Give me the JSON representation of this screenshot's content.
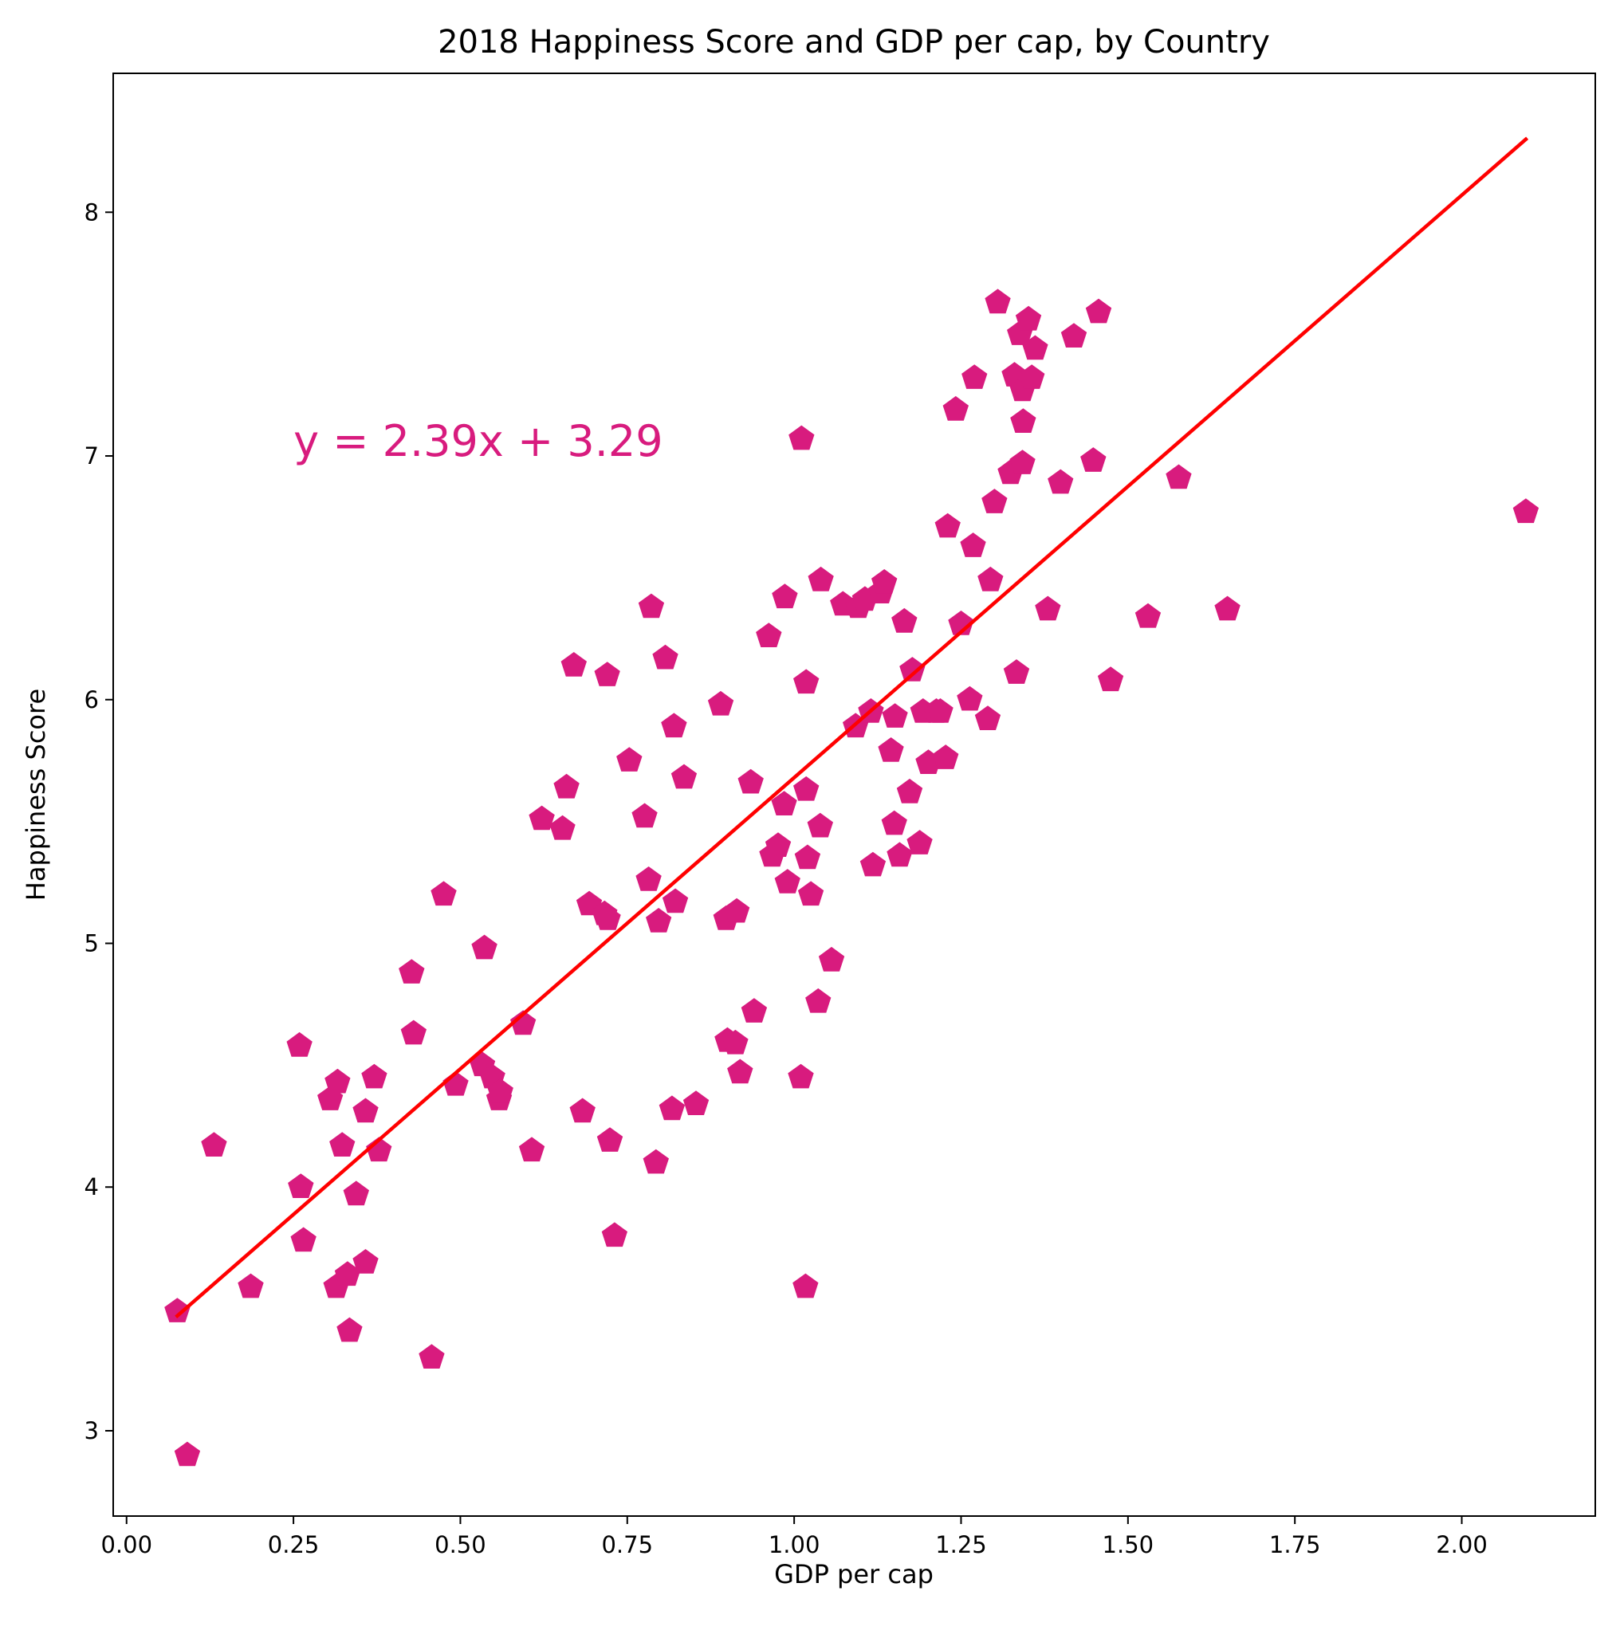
{
  "chart_data": {
    "type": "scatter",
    "title": "2018 Happiness Score and GDP per cap, by Country",
    "xlabel": "GDP per cap",
    "ylabel": "Happiness Score",
    "xlim": [
      -0.02,
      2.2
    ],
    "ylim": [
      2.65,
      8.57
    ],
    "xticks": [
      0.0,
      0.25,
      0.5,
      0.75,
      1.0,
      1.25,
      1.5,
      1.75,
      2.0
    ],
    "xtick_labels": [
      "0.00",
      "0.25",
      "0.50",
      "0.75",
      "1.00",
      "1.25",
      "1.50",
      "1.75",
      "2.00"
    ],
    "yticks": [
      3,
      4,
      5,
      6,
      7,
      8
    ],
    "ytick_labels": [
      "3",
      "4",
      "5",
      "6",
      "7",
      "8"
    ],
    "grid": false,
    "marker_color": "#D81B7E",
    "line_color": "#FF0000",
    "regression": {
      "slope": 2.39,
      "intercept": 3.29,
      "x_range": [
        0.076,
        2.096
      ],
      "label": "y = 2.39x + 3.29",
      "label_position": [
        0.25,
        7.0
      ]
    },
    "points": [
      [
        0.076,
        3.49
      ],
      [
        0.091,
        2.9
      ],
      [
        0.131,
        4.17
      ],
      [
        0.186,
        3.59
      ],
      [
        0.259,
        4.58
      ],
      [
        0.261,
        4.0
      ],
      [
        0.265,
        3.78
      ],
      [
        0.305,
        4.36
      ],
      [
        0.316,
        4.43
      ],
      [
        0.314,
        3.59
      ],
      [
        0.323,
        4.17
      ],
      [
        0.331,
        3.64
      ],
      [
        0.334,
        3.41
      ],
      [
        0.344,
        3.97
      ],
      [
        0.358,
        4.31
      ],
      [
        0.358,
        3.69
      ],
      [
        0.371,
        4.45
      ],
      [
        0.378,
        4.15
      ],
      [
        0.427,
        4.88
      ],
      [
        0.43,
        4.63
      ],
      [
        0.457,
        3.3
      ],
      [
        0.475,
        5.2
      ],
      [
        0.493,
        4.42
      ],
      [
        0.536,
        4.98
      ],
      [
        0.533,
        4.5
      ],
      [
        0.548,
        4.45
      ],
      [
        0.558,
        4.36
      ],
      [
        0.56,
        4.39
      ],
      [
        0.594,
        4.67
      ],
      [
        0.607,
        4.15
      ],
      [
        0.622,
        5.51
      ],
      [
        0.653,
        5.47
      ],
      [
        0.659,
        5.64
      ],
      [
        0.67,
        6.14
      ],
      [
        0.683,
        4.31
      ],
      [
        0.693,
        5.16
      ],
      [
        0.716,
        5.12
      ],
      [
        0.72,
        6.1
      ],
      [
        0.721,
        5.1
      ],
      [
        0.724,
        4.19
      ],
      [
        0.731,
        3.8
      ],
      [
        0.753,
        5.75
      ],
      [
        0.776,
        5.52
      ],
      [
        0.782,
        5.26
      ],
      [
        0.786,
        6.38
      ],
      [
        0.793,
        4.1
      ],
      [
        0.797,
        5.09
      ],
      [
        0.807,
        6.17
      ],
      [
        0.817,
        4.32
      ],
      [
        0.82,
        5.89
      ],
      [
        0.822,
        5.17
      ],
      [
        0.835,
        5.68
      ],
      [
        0.853,
        4.34
      ],
      [
        0.89,
        5.98
      ],
      [
        0.898,
        5.1
      ],
      [
        0.9,
        4.6
      ],
      [
        0.912,
        4.59
      ],
      [
        0.914,
        5.13
      ],
      [
        0.919,
        4.47
      ],
      [
        0.935,
        5.66
      ],
      [
        0.94,
        4.72
      ],
      [
        0.962,
        6.26
      ],
      [
        0.967,
        5.36
      ],
      [
        0.976,
        5.4
      ],
      [
        0.985,
        5.57
      ],
      [
        0.986,
        6.42
      ],
      [
        0.99,
        5.25
      ],
      [
        1.01,
        4.45
      ],
      [
        1.011,
        7.07
      ],
      [
        1.018,
        6.07
      ],
      [
        1.018,
        5.63
      ],
      [
        1.02,
        5.35
      ],
      [
        1.017,
        3.59
      ],
      [
        1.025,
        5.2
      ],
      [
        1.036,
        4.76
      ],
      [
        1.04,
        6.49
      ],
      [
        1.039,
        5.48
      ],
      [
        1.056,
        4.93
      ],
      [
        1.073,
        6.39
      ],
      [
        1.092,
        5.89
      ],
      [
        1.096,
        6.38
      ],
      [
        1.106,
        6.41
      ],
      [
        1.115,
        5.95
      ],
      [
        1.118,
        5.32
      ],
      [
        1.13,
        6.44
      ],
      [
        1.135,
        6.48
      ],
      [
        1.145,
        5.79
      ],
      [
        1.15,
        5.49
      ],
      [
        1.151,
        5.93
      ],
      [
        1.158,
        5.36
      ],
      [
        1.165,
        6.32
      ],
      [
        1.173,
        5.62
      ],
      [
        1.177,
        6.12
      ],
      [
        1.188,
        5.41
      ],
      [
        1.193,
        5.95
      ],
      [
        1.201,
        5.74
      ],
      [
        1.213,
        5.95
      ],
      [
        1.219,
        5.95
      ],
      [
        1.227,
        5.76
      ],
      [
        1.23,
        6.71
      ],
      [
        1.242,
        7.19
      ],
      [
        1.25,
        6.31
      ],
      [
        1.263,
        6.0
      ],
      [
        1.268,
        6.63
      ],
      [
        1.27,
        7.32
      ],
      [
        1.29,
        5.92
      ],
      [
        1.294,
        6.49
      ],
      [
        1.3,
        6.81
      ],
      [
        1.305,
        7.63
      ],
      [
        1.324,
        6.93
      ],
      [
        1.33,
        7.33
      ],
      [
        1.333,
        6.11
      ],
      [
        1.338,
        7.5
      ],
      [
        1.342,
        7.27
      ],
      [
        1.342,
        6.97
      ],
      [
        1.343,
        7.14
      ],
      [
        1.351,
        7.56
      ],
      [
        1.356,
        7.32
      ],
      [
        1.361,
        7.44
      ],
      [
        1.38,
        6.37
      ],
      [
        1.399,
        6.89
      ],
      [
        1.419,
        7.49
      ],
      [
        1.448,
        6.98
      ],
      [
        1.456,
        7.59
      ],
      [
        1.474,
        6.08
      ],
      [
        1.53,
        6.34
      ],
      [
        1.576,
        6.91
      ],
      [
        1.649,
        6.37
      ],
      [
        2.096,
        6.77
      ]
    ]
  }
}
